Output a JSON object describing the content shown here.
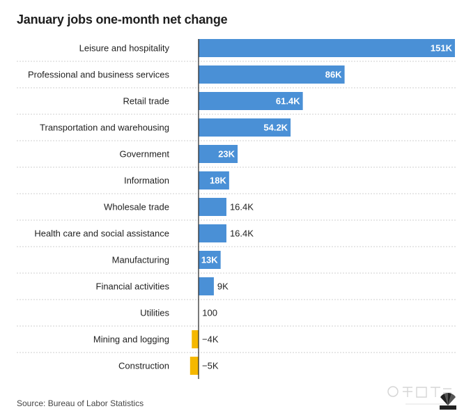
{
  "chart_data": {
    "type": "bar",
    "orientation": "horizontal",
    "title": "January jobs one-month net change",
    "categories": [
      "Leisure and hospitality",
      "Professional and business services",
      "Retail trade",
      "Transportation and warehousing",
      "Government",
      "Information",
      "Wholesale trade",
      "Health care and social assistance",
      "Manufacturing",
      "Financial activities",
      "Utilities",
      "Mining and logging",
      "Construction"
    ],
    "values": [
      151000,
      86000,
      61400,
      54200,
      23000,
      18000,
      16400,
      16400,
      13000,
      9000,
      100,
      -4000,
      -5000
    ],
    "value_labels": [
      "151K",
      "86K",
      "61.4K",
      "54.2K",
      "23K",
      "18K",
      "16.4K",
      "16.4K",
      "13K",
      "9K",
      "100",
      "−4K",
      "−5K"
    ],
    "xlim": [
      -5000,
      151000
    ],
    "grid": false,
    "colors": {
      "positive": "#4a90d6",
      "negative": "#f5b800",
      "axis": "#222222",
      "row_divider": "#cfcfcf"
    }
  },
  "source": "Source: Bureau of Labor Statistics"
}
